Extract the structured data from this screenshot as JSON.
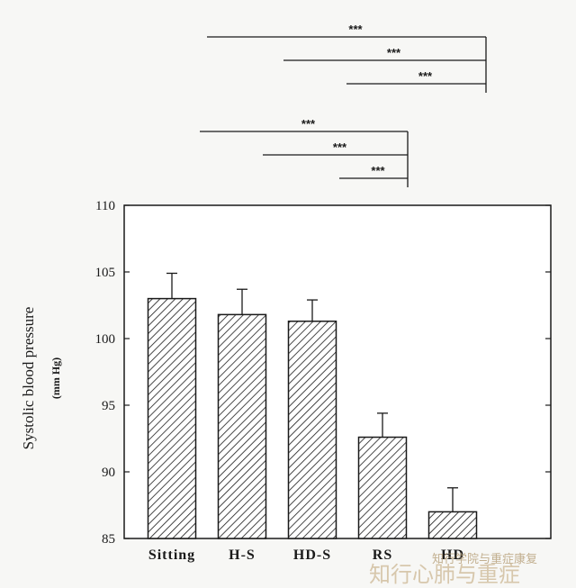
{
  "chart_data": {
    "type": "bar",
    "categories": [
      "Sitting",
      "H-S",
      "HD-S",
      "RS",
      "HD"
    ],
    "values": [
      103.0,
      101.8,
      101.3,
      92.6,
      87.0
    ],
    "errors": [
      1.9,
      1.9,
      1.6,
      1.8,
      1.8
    ],
    "ylabel": "Systolic blood pressure",
    "yunit": "(mm Hg)",
    "ylim": [
      85,
      110
    ],
    "yticks": [
      85,
      90,
      95,
      100,
      105,
      110
    ],
    "bar_pattern": "diagonal-hatch",
    "bar_fill": "#ffffff",
    "ink_color": "#1a1a1a",
    "significance": [
      {
        "from": 0,
        "to": 4,
        "label": "***"
      },
      {
        "from": 1,
        "to": 4,
        "label": "***"
      },
      {
        "from": 2,
        "to": 4,
        "label": "***"
      },
      {
        "from": 0,
        "to": 3,
        "label": "***"
      },
      {
        "from": 1,
        "to": 3,
        "label": "***"
      },
      {
        "from": 2,
        "to": 3,
        "label": "***"
      }
    ]
  },
  "watermark": {
    "line1": "知行学院与重症康复",
    "line2": "知行心肺与重症"
  }
}
